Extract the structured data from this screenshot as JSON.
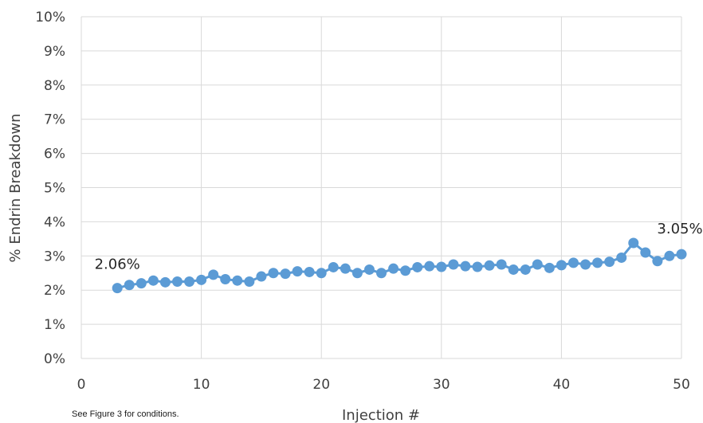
{
  "footnote": "See Figure 3 for conditions.",
  "colors": {
    "series": "#5b9bd5",
    "grid": "#d9d9d9",
    "text": "#404040"
  },
  "chart_data": {
    "type": "line",
    "title": "",
    "xlabel": "Injection #",
    "ylabel": "% Endrin Breakdown",
    "xlim": [
      0,
      50
    ],
    "ylim": [
      0,
      10
    ],
    "x_ticks": [
      0,
      10,
      20,
      30,
      40,
      50
    ],
    "x_tick_labels": [
      "0",
      "10",
      "20",
      "30",
      "40",
      "50"
    ],
    "y_ticks": [
      0,
      1,
      2,
      3,
      4,
      5,
      6,
      7,
      8,
      9,
      10
    ],
    "y_tick_labels": [
      "0%",
      "1%",
      "2%",
      "3%",
      "4%",
      "5%",
      "6%",
      "7%",
      "8%",
      "9%",
      "10%"
    ],
    "grid": true,
    "legend": "none",
    "series": [
      {
        "x": [
          3,
          4,
          5,
          6,
          7,
          8,
          9,
          10,
          11,
          12,
          13,
          14,
          15,
          16,
          17,
          18,
          19,
          20,
          21,
          22,
          23,
          24,
          25,
          26,
          27,
          28,
          29,
          30,
          31,
          32,
          33,
          34,
          35,
          36,
          37,
          38,
          39,
          40,
          41,
          42,
          43,
          44,
          45,
          46,
          47,
          48,
          49,
          50
        ],
        "values": [
          2.06,
          2.15,
          2.2,
          2.28,
          2.23,
          2.25,
          2.25,
          2.3,
          2.45,
          2.32,
          2.28,
          2.25,
          2.4,
          2.5,
          2.48,
          2.55,
          2.53,
          2.5,
          2.67,
          2.63,
          2.5,
          2.6,
          2.5,
          2.63,
          2.57,
          2.67,
          2.7,
          2.68,
          2.75,
          2.7,
          2.68,
          2.72,
          2.75,
          2.6,
          2.6,
          2.75,
          2.65,
          2.73,
          2.8,
          2.75,
          2.8,
          2.83,
          2.95,
          3.38,
          3.1,
          2.85,
          3.0,
          3.05
        ]
      }
    ],
    "annotations": [
      {
        "text": "2.06%",
        "x": 3,
        "y": 2.06
      },
      {
        "text": "3.05%",
        "x": 50,
        "y": 3.05
      }
    ]
  }
}
